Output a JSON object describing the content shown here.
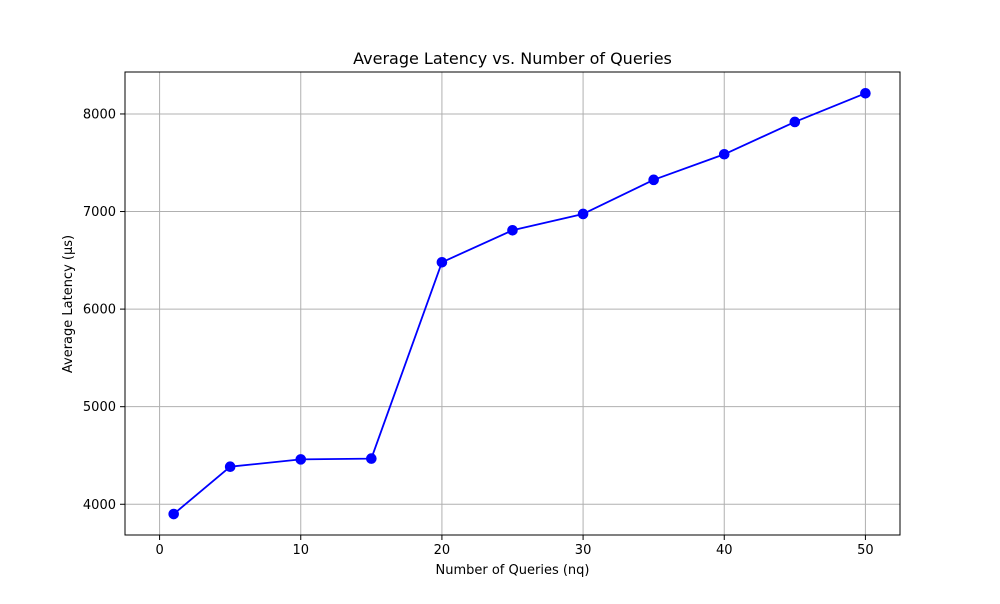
{
  "chart_data": {
    "type": "line",
    "title": "Average Latency vs. Number of Queries",
    "xlabel": "Number of Queries (nq)",
    "ylabel": "Average Latency (µs)",
    "xlim": [
      -2.45,
      52.45
    ],
    "ylim": [
      3685,
      8430
    ],
    "x_ticks": [
      0,
      10,
      20,
      30,
      40,
      50
    ],
    "y_ticks": [
      4000,
      5000,
      6000,
      7000,
      8000
    ],
    "grid": true,
    "series": [
      {
        "color": "#0000ff",
        "marker": "circle",
        "points": [
          {
            "x": 1,
            "y": 3900
          },
          {
            "x": 5,
            "y": 4385
          },
          {
            "x": 10,
            "y": 4460
          },
          {
            "x": 15,
            "y": 4468
          },
          {
            "x": 20,
            "y": 6480
          },
          {
            "x": 25,
            "y": 6808
          },
          {
            "x": 30,
            "y": 6975
          },
          {
            "x": 35,
            "y": 7325
          },
          {
            "x": 40,
            "y": 7587
          },
          {
            "x": 45,
            "y": 7918
          },
          {
            "x": 50,
            "y": 8212
          }
        ]
      }
    ]
  },
  "colors": {
    "axis": "#000000",
    "grid": "#b0b0b0",
    "line": "#0000ff"
  }
}
